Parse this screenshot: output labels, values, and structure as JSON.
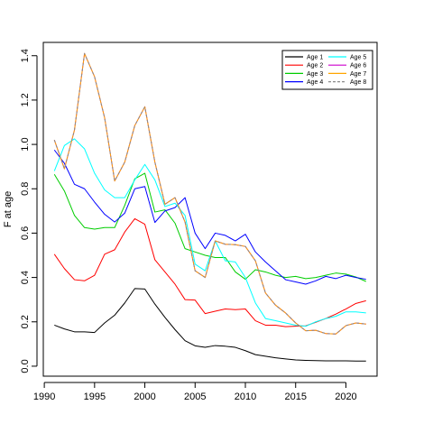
{
  "chart_data": {
    "type": "line",
    "title": "",
    "xlabel": "",
    "ylabel": "F at age",
    "xlim": [
      1989.9,
      2023.1
    ],
    "ylim": [
      -0.045,
      1.46
    ],
    "x_ticks": [
      1990,
      1995,
      2000,
      2005,
      2010,
      2015,
      2020
    ],
    "y_ticks": [
      0.0,
      0.2,
      0.4,
      0.6,
      0.8,
      1.0,
      1.2,
      1.4
    ],
    "y_tick_labels": [
      "0.0",
      "0.2",
      "0.4",
      "0.6",
      "0.8",
      "1.0",
      "1.2",
      "1.4"
    ],
    "grid": false,
    "legend_position": "top-right",
    "x": [
      1991,
      1992,
      1993,
      1994,
      1995,
      1996,
      1997,
      1998,
      1999,
      2000,
      2001,
      2002,
      2003,
      2004,
      2005,
      2006,
      2007,
      2008,
      2009,
      2010,
      2011,
      2012,
      2013,
      2014,
      2015,
      2016,
      2017,
      2018,
      2019,
      2020,
      2021,
      2022
    ],
    "series": [
      {
        "name": "Age 1",
        "color": "#000000",
        "dashed": false,
        "values": [
          0.185,
          0.168,
          0.155,
          0.155,
          0.152,
          0.195,
          0.23,
          0.285,
          0.35,
          0.348,
          0.28,
          0.22,
          0.165,
          0.115,
          0.092,
          0.085,
          0.093,
          0.09,
          0.085,
          0.07,
          0.052,
          0.045,
          0.038,
          0.033,
          0.028,
          0.026,
          0.025,
          0.024,
          0.024,
          0.024,
          0.023,
          0.023
        ]
      },
      {
        "name": "Age 2",
        "color": "#ff0000",
        "dashed": false,
        "values": [
          0.505,
          0.44,
          0.39,
          0.385,
          0.41,
          0.505,
          0.525,
          0.605,
          0.665,
          0.64,
          0.48,
          0.425,
          0.37,
          0.3,
          0.298,
          0.237,
          0.248,
          0.258,
          0.255,
          0.258,
          0.205,
          0.185,
          0.185,
          0.178,
          0.18,
          0.182,
          0.198,
          0.215,
          0.235,
          0.258,
          0.283,
          0.295
        ]
      },
      {
        "name": "Age 3",
        "color": "#00cd00",
        "dashed": false,
        "values": [
          0.865,
          0.79,
          0.68,
          0.625,
          0.618,
          0.625,
          0.625,
          0.725,
          0.845,
          0.87,
          0.695,
          0.705,
          0.645,
          0.53,
          0.515,
          0.5,
          0.49,
          0.49,
          0.425,
          0.392,
          0.435,
          0.425,
          0.41,
          0.4,
          0.405,
          0.395,
          0.4,
          0.41,
          0.42,
          0.415,
          0.402,
          0.382
        ]
      },
      {
        "name": "Age 4",
        "color": "#0000ff",
        "dashed": false,
        "values": [
          0.975,
          0.915,
          0.82,
          0.8,
          0.74,
          0.685,
          0.65,
          0.69,
          0.8,
          0.81,
          0.648,
          0.7,
          0.715,
          0.76,
          0.6,
          0.53,
          0.6,
          0.59,
          0.565,
          0.595,
          0.515,
          0.47,
          0.43,
          0.39,
          0.38,
          0.37,
          0.385,
          0.405,
          0.395,
          0.41,
          0.4,
          0.392
        ]
      },
      {
        "name": "Age 5",
        "color": "#00ffff",
        "dashed": false,
        "values": [
          0.88,
          0.995,
          1.025,
          0.98,
          0.87,
          0.795,
          0.76,
          0.76,
          0.84,
          0.91,
          0.84,
          0.72,
          0.735,
          0.68,
          0.46,
          0.43,
          0.565,
          0.475,
          0.47,
          0.4,
          0.285,
          0.215,
          0.205,
          0.195,
          0.185,
          0.18,
          0.2,
          0.215,
          0.225,
          0.245,
          0.245,
          0.24
        ]
      },
      {
        "name": "Age 6",
        "color": "#cd00cd",
        "dashed": false,
        "values": [
          1.02,
          0.89,
          1.065,
          1.41,
          1.305,
          1.12,
          0.835,
          0.92,
          1.085,
          1.17,
          0.92,
          0.73,
          0.76,
          0.65,
          0.43,
          0.4,
          0.565,
          0.55,
          0.548,
          0.54,
          0.475,
          0.33,
          0.275,
          0.24,
          0.195,
          0.16,
          0.162,
          0.147,
          0.145,
          0.183,
          0.195,
          0.19
        ]
      },
      {
        "name": "Age 7",
        "color": "#ffa500",
        "dashed": false,
        "values": [
          1.02,
          0.89,
          1.065,
          1.41,
          1.305,
          1.12,
          0.835,
          0.92,
          1.085,
          1.17,
          0.92,
          0.73,
          0.76,
          0.65,
          0.43,
          0.4,
          0.565,
          0.55,
          0.548,
          0.54,
          0.475,
          0.33,
          0.275,
          0.24,
          0.195,
          0.16,
          0.162,
          0.147,
          0.145,
          0.183,
          0.195,
          0.19
        ]
      },
      {
        "name": "Age 8",
        "color": "#8b8b8b",
        "dashed": true,
        "values": [
          1.02,
          0.89,
          1.065,
          1.41,
          1.305,
          1.12,
          0.835,
          0.92,
          1.085,
          1.17,
          0.92,
          0.73,
          0.76,
          0.65,
          0.43,
          0.4,
          0.565,
          0.55,
          0.548,
          0.54,
          0.475,
          0.33,
          0.275,
          0.24,
          0.195,
          0.16,
          0.162,
          0.147,
          0.145,
          0.183,
          0.195,
          0.19
        ]
      }
    ]
  }
}
